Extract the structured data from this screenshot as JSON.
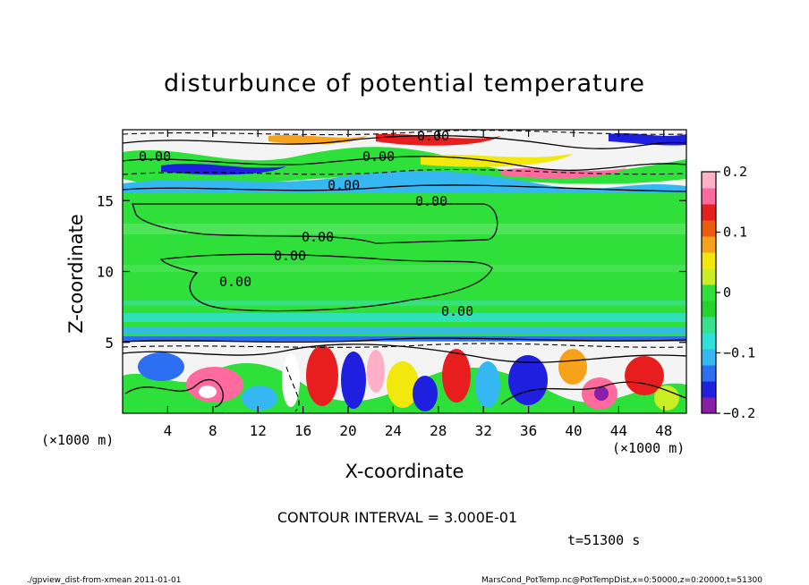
{
  "chart_data": {
    "type": "heatmap",
    "title": "disturbunce of potential temperature",
    "xlabel": "X-coordinate",
    "ylabel": "Z-coordinate",
    "x_unit_left": "(×1000 m)",
    "x_unit_right": "(×1000 m)",
    "xlim": [
      0,
      50
    ],
    "ylim": [
      0,
      20
    ],
    "xticks": [
      4,
      8,
      12,
      16,
      20,
      24,
      28,
      32,
      36,
      40,
      44,
      48
    ],
    "yticks": [
      5,
      10,
      15
    ],
    "colorbar": {
      "min": -0.2,
      "max": 0.2,
      "tick_values": [
        0.2,
        0.1,
        0,
        -0.1,
        -0.2
      ],
      "tick_labels": [
        "0.2",
        "0.1",
        "0",
        "−0.1",
        "−0.2"
      ],
      "colors": [
        "#8b1ea6",
        "#1f1fe0",
        "#2d6ff2",
        "#35b8f2",
        "#2fe0d8",
        "#37e08e",
        "#22d42c",
        "#2ee03a",
        "#c9ee24",
        "#f2e80c",
        "#f6a21a",
        "#ee5c12",
        "#e81e1e",
        "#ff6a9e",
        "#ffb0c8"
      ]
    },
    "contour_labels": [
      "0.00",
      "0.00",
      "0.00",
      "0.00",
      "0.00",
      "0.00",
      "0.00",
      "0.00",
      "0.00"
    ],
    "contour_interval": "CONTOUR INTERVAL = 3.000E-01",
    "time_label": "t=51300 s",
    "footer_left": "./gpview_dist-from-xmean  2011-01-01",
    "footer_right": "MarsCond_PotTemp.nc@PotTempDist,x=0:50000,z=0:20000,t=51300"
  }
}
